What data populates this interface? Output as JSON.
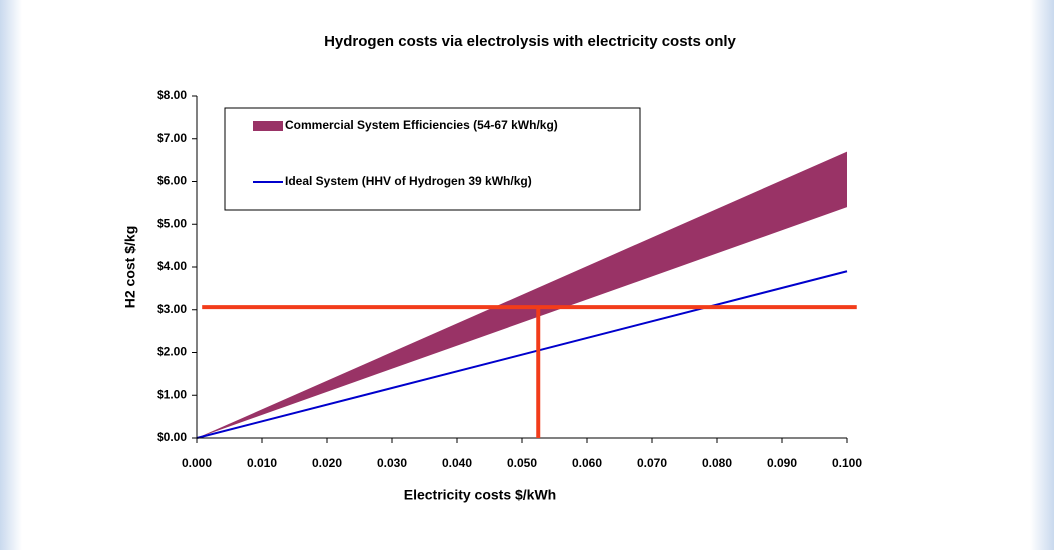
{
  "chart_data": {
    "type": "line",
    "title": "Hydrogen costs via electrolysis with electricity costs only",
    "x_label": "Electricity costs $/kWh",
    "y_label": "H2 cost $/kg",
    "xlim": [
      0,
      0.1
    ],
    "ylim": [
      0,
      8
    ],
    "xticks": [
      {
        "value": 0,
        "label": "0.000"
      },
      {
        "value": 0.01,
        "label": "0.010"
      },
      {
        "value": 0.02,
        "label": "0.020"
      },
      {
        "value": 0.03,
        "label": "0.030"
      },
      {
        "value": 0.04,
        "label": "0.040"
      },
      {
        "value": 0.05,
        "label": "0.050"
      },
      {
        "value": 0.06,
        "label": "0.060"
      },
      {
        "value": 0.07,
        "label": "0.070"
      },
      {
        "value": 0.08,
        "label": "0.080"
      },
      {
        "value": 0.09,
        "label": "0.090"
      },
      {
        "value": 0.1,
        "label": "0.100"
      }
    ],
    "yticks": [
      {
        "value": 0,
        "label": "$0.00"
      },
      {
        "value": 1,
        "label": "$1.00"
      },
      {
        "value": 2,
        "label": "$2.00"
      },
      {
        "value": 3,
        "label": "$3.00"
      },
      {
        "value": 4,
        "label": "$4.00"
      },
      {
        "value": 5,
        "label": "$5.00"
      },
      {
        "value": 6,
        "label": "$6.00"
      },
      {
        "value": 7,
        "label": "$7.00"
      },
      {
        "value": 8,
        "label": "$8.00"
      }
    ],
    "legend": "upper left",
    "series": [
      {
        "name": "Commercial System Efficiencies  (54-67 kWh/kg)",
        "kind": "band",
        "color": "#993366",
        "x": [
          0,
          0.1
        ],
        "low": [
          0,
          5.4
        ],
        "high": [
          0,
          6.7
        ]
      },
      {
        "name": "Ideal System (HHV of Hydrogen 39 kWh/kg)",
        "kind": "line",
        "color": "#0000cc",
        "x": [
          0,
          0.1
        ],
        "values": [
          0,
          3.9
        ]
      }
    ],
    "annotations": [
      {
        "color": "#f23c1a",
        "x": [
          0.0008,
          0.1015
        ],
        "values": [
          3.06,
          3.06
        ]
      },
      {
        "color": "#f23c1a",
        "x": [
          0.0525,
          0.0525
        ],
        "values": [
          3.06,
          0
        ]
      }
    ]
  }
}
